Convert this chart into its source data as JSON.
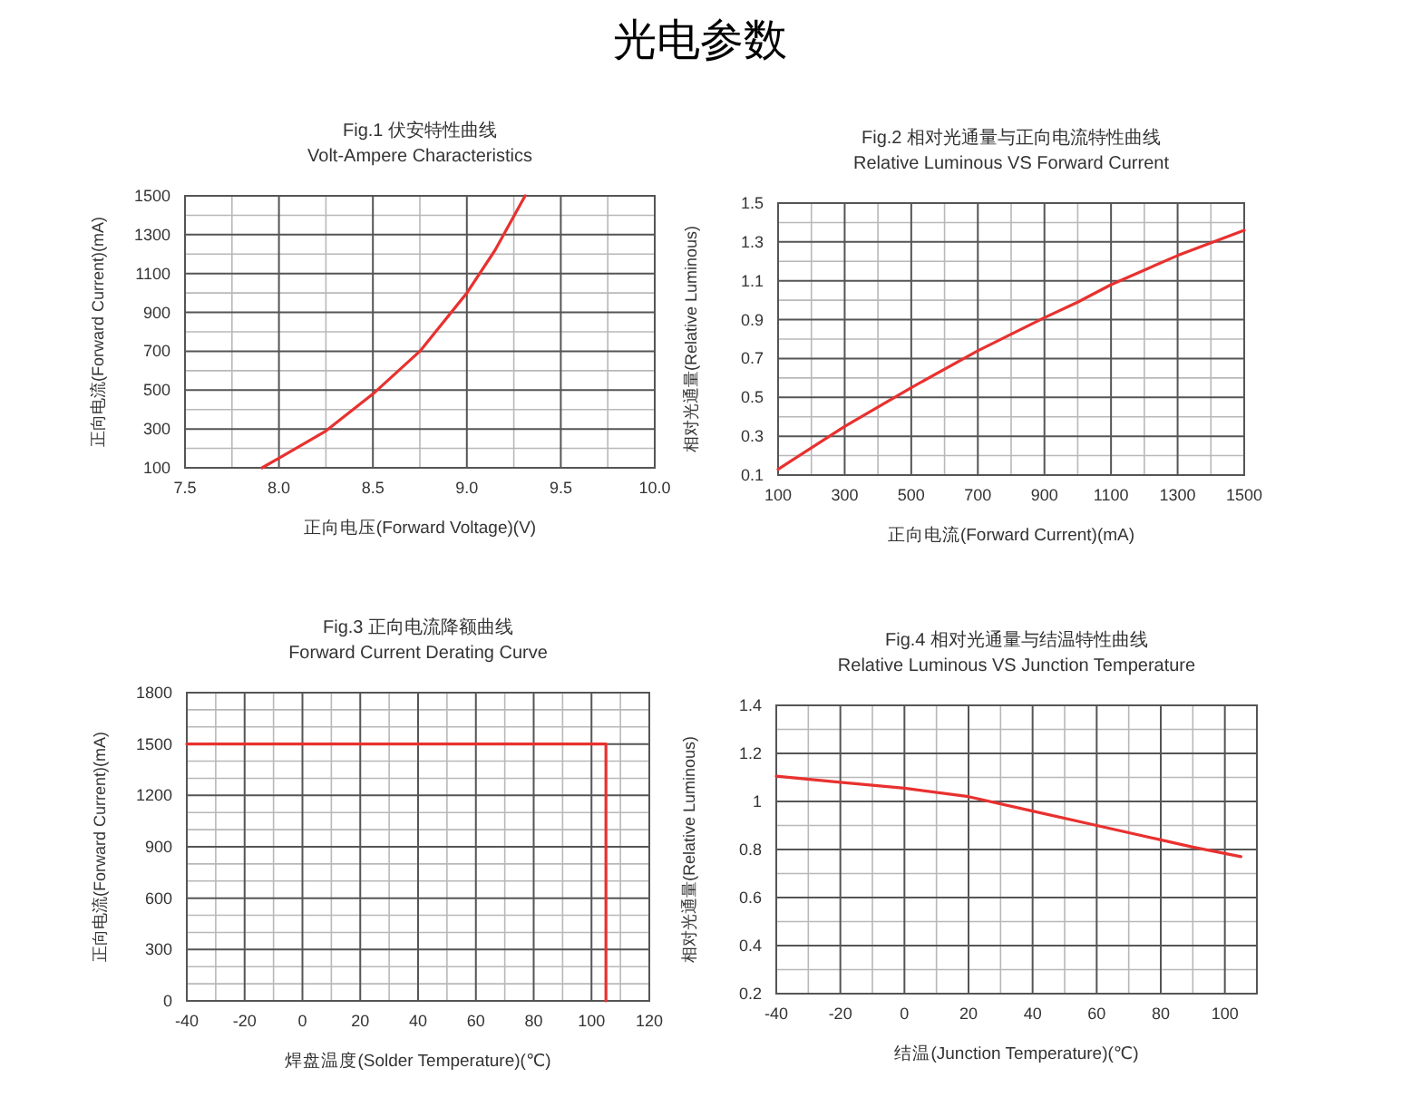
{
  "chart_data": [
    {
      "type": "other",
      "title": "光电参数"
    },
    {
      "type": "line",
      "title": "Fig.1 伏安特性曲线",
      "subtitle": "Volt-Ampere Characteristics",
      "xlabel": "正向电压(Forward Voltage)(V)",
      "ylabel": "正向电流(Forward Current)(mA)",
      "x": [
        7.91,
        8.0,
        8.25,
        8.5,
        8.75,
        9.0,
        9.15,
        9.31
      ],
      "series": [
        {
          "color": "#e8312f",
          "values": [
            100,
            150,
            290,
            480,
            700,
            1000,
            1220,
            1500
          ]
        }
      ],
      "xlim": [
        7.5,
        10.0
      ],
      "ylim": [
        100,
        1500
      ],
      "xticks": [
        {
          "value": 7.5,
          "label": "7.5"
        },
        {
          "value": 8.0,
          "label": "8.0"
        },
        {
          "value": 8.5,
          "label": "8.5"
        },
        {
          "value": 9.0,
          "label": "9.0"
        },
        {
          "value": 9.5,
          "label": "9.5"
        },
        {
          "value": 10.0,
          "label": "10.0"
        }
      ],
      "yticks": [
        100,
        300,
        500,
        700,
        900,
        1100,
        1300,
        1500
      ],
      "grid": true
    },
    {
      "type": "line",
      "title": "Fig.2 相对光通量与正向电流特性曲线",
      "subtitle": "Relative Luminous VS Forward Current",
      "xlabel": "正向电流(Forward Current)(mA)",
      "ylabel": "相对光通量(Relative Luminous)",
      "x": [
        100,
        300,
        500,
        700,
        900,
        1000,
        1100,
        1300,
        1500
      ],
      "series": [
        {
          "color": "#e8312f",
          "values": [
            0.13,
            0.35,
            0.55,
            0.74,
            0.91,
            0.99,
            1.08,
            1.23,
            1.36
          ]
        }
      ],
      "xlim": [
        100,
        1500
      ],
      "ylim": [
        0.1,
        1.5
      ],
      "xticks": [
        100,
        300,
        500,
        700,
        900,
        1100,
        1300,
        1500
      ],
      "yticks": [
        0.1,
        0.3,
        0.5,
        0.7,
        0.9,
        1.1,
        1.3,
        1.5
      ],
      "grid": true
    },
    {
      "type": "line",
      "title": "Fig.3 正向电流降额曲线",
      "subtitle": "Forward Current Derating Curve",
      "xlabel": "焊盘温度(Solder Temperature)(℃)",
      "ylabel": "正向电流(Forward Current)(mA)",
      "x": [
        -40,
        105,
        105
      ],
      "series": [
        {
          "color": "#e8312f",
          "values": [
            1500,
            1500,
            0
          ]
        }
      ],
      "xlim": [
        -40,
        120
      ],
      "ylim": [
        0,
        1800
      ],
      "xticks": [
        -40,
        -20,
        0,
        20,
        40,
        60,
        80,
        100,
        120
      ],
      "yticks": [
        0,
        300,
        600,
        900,
        1200,
        1500,
        1800
      ],
      "grid": true
    },
    {
      "type": "line",
      "title": "Fig.4 相对光通量与结温特性曲线",
      "subtitle": "Relative Luminous VS Junction Temperature",
      "xlabel": "结温(Junction Temperature)(℃)",
      "ylabel": "相对光通量(Relative Luminous)",
      "x": [
        -40,
        -20,
        0,
        20,
        40,
        60,
        80,
        90,
        105
      ],
      "series": [
        {
          "color": "#e8312f",
          "values": [
            1.105,
            1.08,
            1.055,
            1.02,
            0.96,
            0.9,
            0.84,
            0.81,
            0.77
          ]
        }
      ],
      "xlim": [
        -40,
        110
      ],
      "ylim": [
        0.2,
        1.4
      ],
      "xticks": [
        -40,
        -20,
        0,
        20,
        40,
        60,
        80,
        100
      ],
      "yticks": [
        0.2,
        0.4,
        0.6,
        0.8,
        1,
        1.2,
        1.4
      ],
      "grid": true
    }
  ]
}
